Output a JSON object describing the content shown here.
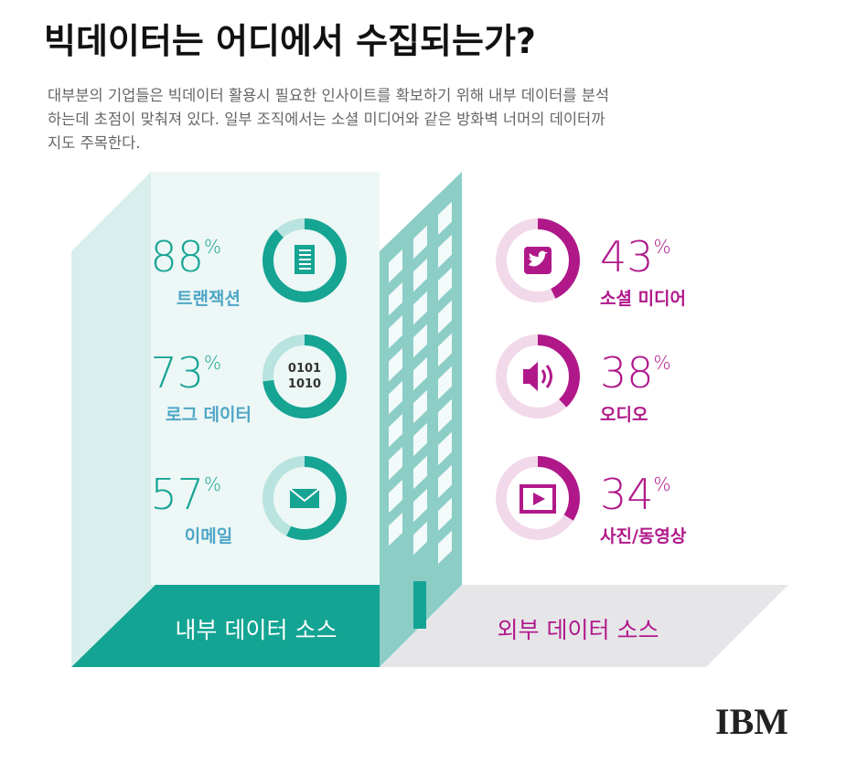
{
  "title": "빅데이터는 어디에서 수집되는가?",
  "description": [
    "대부분의 기업들은 빅데이터 활용시 필요한 인사이트를 확보하기 위해 내부 데이터를 분석",
    "하는데 초점이 맞춰져 있다. 일부 조직에서는 소셜 미디어와 같은 방화벽 너머의 데이터까",
    "지도 주목한다."
  ],
  "unit": "%",
  "internal": {
    "label": "내부 데이터 소스",
    "items": [
      {
        "value": 88,
        "label": "트랜잭션"
      },
      {
        "value": 73,
        "label": "로그 데이터"
      },
      {
        "value": 57,
        "label": "이메일"
      }
    ]
  },
  "external": {
    "label": "외부 데이터 소스",
    "items": [
      {
        "value": 43,
        "label": "소셜 미디어"
      },
      {
        "value": 38,
        "label": "오디오"
      },
      {
        "value": 34,
        "label": "사진/동영상"
      }
    ]
  },
  "icon_text": [
    "0101",
    "1010"
  ],
  "logo": "IBM"
}
